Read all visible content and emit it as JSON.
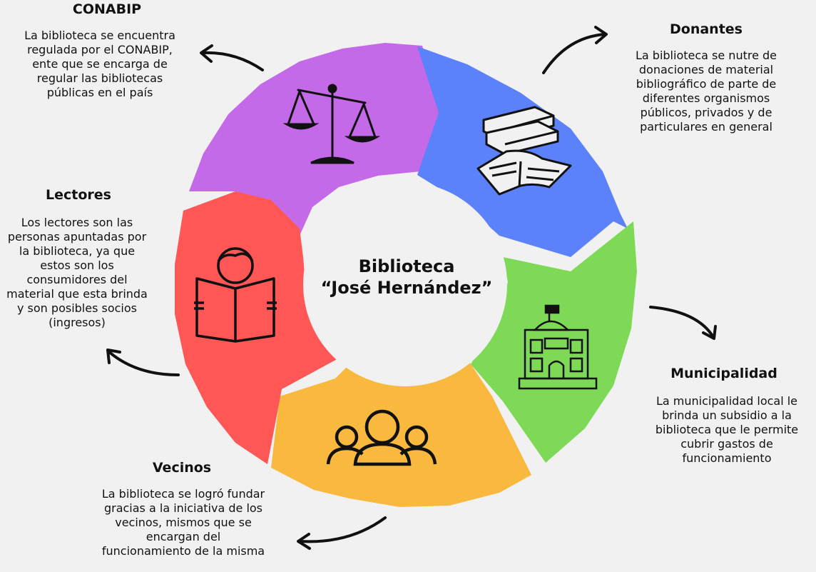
{
  "center": {
    "line1": "Biblioteca",
    "line2": "“José Hernández”"
  },
  "nodes": {
    "conabip": {
      "title": "CONABIP",
      "color": "#c46ae8",
      "icon": "scales-icon",
      "text": "La biblioteca se encuentra regulada por el CONABIP, ente que se encarga de regular las bibliotecas públicas en el país"
    },
    "donantes": {
      "title": "Donantes",
      "color": "#5b82fa",
      "icon": "books-icon",
      "text": "La biblioteca se nutre de donaciones de material bibliográfico de parte de diferentes organismos públicos, privados y de particulares en general"
    },
    "municipalidad": {
      "title": "Municipalidad",
      "color": "#7ed957",
      "icon": "municipal-building-icon",
      "text": "La municipalidad local le brinda un subsidio a la biblioteca que le permite cubrir gastos de funcionamiento"
    },
    "vecinos": {
      "title": "Vecinos",
      "color": "#f8b93e",
      "icon": "people-group-icon",
      "text": "La biblioteca se logró fundar gracias a la iniciativa de los vecinos, mismos que se encargan del funcionamiento de la misma"
    },
    "lectores": {
      "title": "Lectores",
      "color": "#ff5656",
      "icon": "reader-icon",
      "text": "Los lectores son las personas apuntadas por la biblioteca, ya que estos son los consumidores del material que esta brinda y son posibles socios (ingresos)"
    }
  }
}
